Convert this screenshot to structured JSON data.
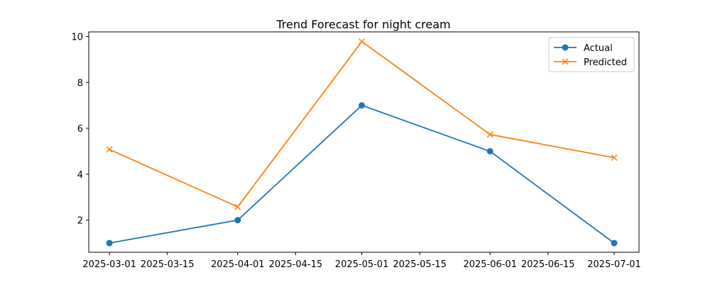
{
  "chart_data": {
    "type": "line",
    "title": "Trend Forecast for night cream",
    "xlabel": "",
    "ylabel": "",
    "x": [
      "2025-03-01",
      "2025-04-01",
      "2025-05-01",
      "2025-06-01",
      "2025-07-01"
    ],
    "xlim": [
      "2025-02-24",
      "2025-07-07"
    ],
    "ylim": [
      0.6,
      10.2
    ],
    "x_ticks": [
      "2025-03-01",
      "2025-03-15",
      "2025-04-01",
      "2025-04-15",
      "2025-05-01",
      "2025-05-15",
      "2025-06-01",
      "2025-06-15",
      "2025-07-01"
    ],
    "y_ticks": [
      2,
      4,
      6,
      8,
      10
    ],
    "grid": false,
    "legend_position": "top-right",
    "series": [
      {
        "name": "Actual",
        "values": [
          1,
          2,
          7,
          5,
          1
        ],
        "color": "#1f77b4",
        "marker": "circle"
      },
      {
        "name": "Predicted",
        "values": [
          5.08,
          2.58,
          9.78,
          5.73,
          4.72
        ],
        "color": "#ff7f0e",
        "marker": "x"
      }
    ]
  }
}
